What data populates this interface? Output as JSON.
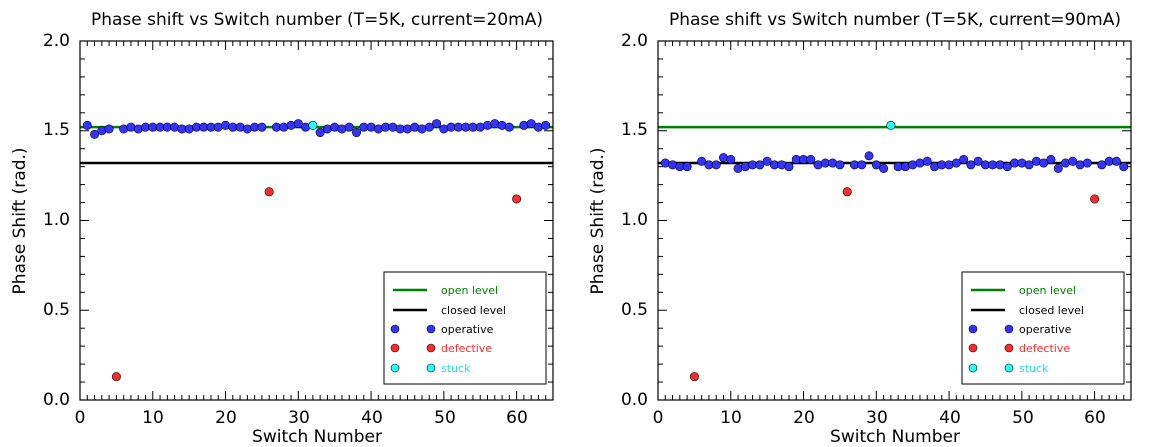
{
  "colors": {
    "open": "#008000",
    "closed": "#000000",
    "operative": "#3333ff",
    "defective": "#ff2a2a",
    "stuck": "#22ffff"
  },
  "chart_data": [
    {
      "type": "scatter",
      "title": "Phase shift vs Switch number (T=5K, current=20mA)",
      "xlabel": "Switch Number",
      "ylabel": "Phase Shift (rad.)",
      "xlim": [
        0,
        65
      ],
      "ylim": [
        0,
        2.0
      ],
      "xticks": [
        "0",
        "10",
        "20",
        "30",
        "40",
        "50",
        "60"
      ],
      "yticks": [
        "0.0",
        "0.5",
        "1.0",
        "1.5",
        "2.0"
      ],
      "grid": false,
      "legend_position": "bottom-right",
      "legend": [
        "open level",
        "closed level",
        "operative",
        "defective",
        "stuck"
      ],
      "open_level": 1.52,
      "closed_level": 1.32,
      "series": [
        {
          "name": "operative",
          "x": [
            1,
            2,
            3,
            4,
            6,
            7,
            8,
            9,
            10,
            11,
            12,
            13,
            14,
            15,
            16,
            17,
            18,
            19,
            20,
            21,
            22,
            23,
            24,
            25,
            27,
            28,
            29,
            30,
            31,
            33,
            34,
            35,
            36,
            37,
            38,
            39,
            40,
            41,
            42,
            43,
            44,
            45,
            46,
            47,
            48,
            49,
            50,
            51,
            52,
            53,
            54,
            55,
            56,
            57,
            58,
            59,
            61,
            62,
            63,
            64
          ],
          "y": [
            1.53,
            1.48,
            1.5,
            1.51,
            1.51,
            1.52,
            1.51,
            1.52,
            1.52,
            1.52,
            1.52,
            1.52,
            1.51,
            1.51,
            1.52,
            1.52,
            1.52,
            1.52,
            1.53,
            1.52,
            1.52,
            1.51,
            1.52,
            1.52,
            1.52,
            1.52,
            1.53,
            1.54,
            1.52,
            1.49,
            1.51,
            1.52,
            1.51,
            1.52,
            1.49,
            1.52,
            1.52,
            1.51,
            1.52,
            1.52,
            1.51,
            1.51,
            1.52,
            1.51,
            1.52,
            1.54,
            1.51,
            1.52,
            1.52,
            1.52,
            1.52,
            1.52,
            1.53,
            1.54,
            1.53,
            1.52,
            1.53,
            1.54,
            1.52,
            1.53
          ]
        },
        {
          "name": "defective",
          "x": [
            5,
            26,
            60
          ],
          "y": [
            0.13,
            1.16,
            1.12
          ]
        },
        {
          "name": "stuck",
          "x": [
            32
          ],
          "y": [
            1.53
          ]
        }
      ]
    },
    {
      "type": "scatter",
      "title": "Phase shift vs Switch number (T=5K, current=90mA)",
      "xlabel": "Switch Number",
      "ylabel": "Phase Shift (rad.)",
      "xlim": [
        0,
        65
      ],
      "ylim": [
        0,
        2.0
      ],
      "xticks": [
        "0",
        "10",
        "20",
        "30",
        "40",
        "50",
        "60"
      ],
      "yticks": [
        "0.0",
        "0.5",
        "1.0",
        "1.5",
        "2.0"
      ],
      "grid": false,
      "legend_position": "bottom-right",
      "legend": [
        "open level",
        "closed level",
        "operative",
        "defective",
        "stuck"
      ],
      "open_level": 1.52,
      "closed_level": 1.32,
      "series": [
        {
          "name": "operative",
          "x": [
            1,
            2,
            3,
            4,
            6,
            7,
            8,
            9,
            10,
            11,
            12,
            13,
            14,
            15,
            16,
            17,
            18,
            19,
            20,
            21,
            22,
            23,
            24,
            25,
            27,
            28,
            29,
            30,
            31,
            33,
            34,
            35,
            36,
            37,
            38,
            39,
            40,
            41,
            42,
            43,
            44,
            45,
            46,
            47,
            48,
            49,
            50,
            51,
            52,
            53,
            54,
            55,
            56,
            57,
            58,
            59,
            61,
            62,
            63,
            64
          ],
          "y": [
            1.32,
            1.31,
            1.3,
            1.3,
            1.33,
            1.31,
            1.31,
            1.35,
            1.34,
            1.29,
            1.3,
            1.31,
            1.31,
            1.33,
            1.31,
            1.31,
            1.3,
            1.34,
            1.34,
            1.34,
            1.31,
            1.32,
            1.32,
            1.31,
            1.31,
            1.31,
            1.36,
            1.31,
            1.29,
            1.3,
            1.3,
            1.31,
            1.32,
            1.33,
            1.3,
            1.31,
            1.31,
            1.32,
            1.34,
            1.31,
            1.33,
            1.31,
            1.31,
            1.31,
            1.3,
            1.32,
            1.32,
            1.31,
            1.33,
            1.32,
            1.34,
            1.29,
            1.32,
            1.33,
            1.31,
            1.32,
            1.31,
            1.33,
            1.33,
            1.3
          ]
        },
        {
          "name": "defective",
          "x": [
            5,
            26,
            60
          ],
          "y": [
            0.13,
            1.16,
            1.12
          ]
        },
        {
          "name": "stuck",
          "x": [
            32
          ],
          "y": [
            1.53
          ]
        }
      ]
    }
  ]
}
